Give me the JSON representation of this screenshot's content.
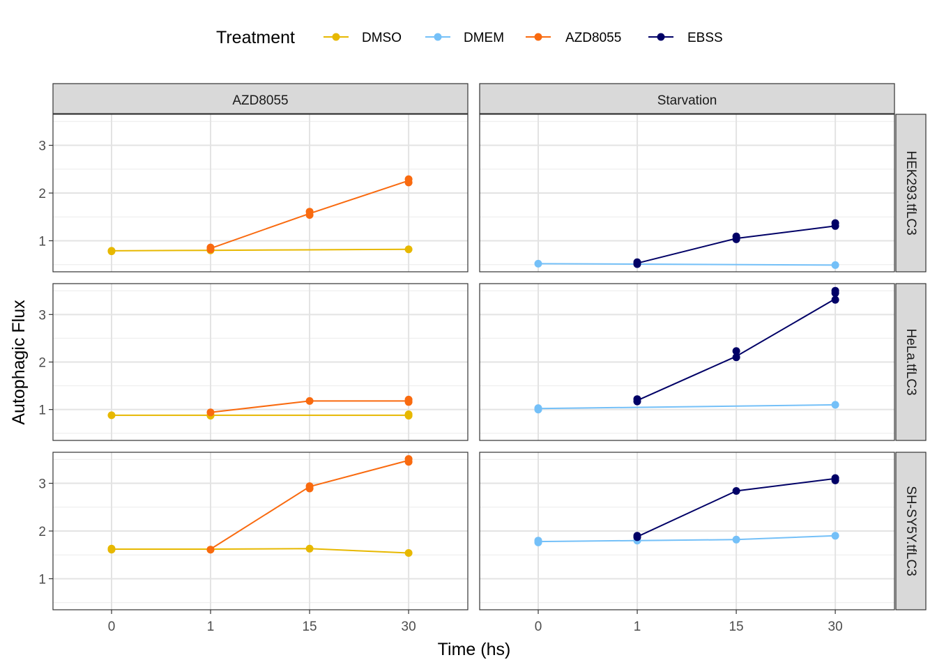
{
  "chart_data": {
    "type": "line",
    "xlabel": "Time (hs)",
    "ylabel": "Autophagic Flux",
    "x_categories": [
      "0",
      "1",
      "15",
      "30"
    ],
    "y_ticks": [
      1,
      2,
      3
    ],
    "ylim": [
      0.35,
      3.65
    ],
    "grid": true,
    "legend": {
      "title": "Treatment",
      "placement": "top",
      "entries": [
        {
          "name": "DMSO",
          "color": "#E7B800"
        },
        {
          "name": "DMEM",
          "color": "#74C0F8"
        },
        {
          "name": "AZD8055",
          "color": "#F96A0F"
        },
        {
          "name": "EBSS",
          "color": "#000066"
        }
      ]
    },
    "columns": [
      "AZD8055",
      "Starvation"
    ],
    "rows": [
      "HEK293.tfLC3",
      "HeLa.tfLC3",
      "SH-SY5Y.tfLC3"
    ],
    "panels": [
      {
        "row": 0,
        "col": 0,
        "series": [
          {
            "name": "DMSO",
            "x": [
              "0",
              "1",
              "15",
              "30"
            ],
            "y": [
              0.79,
              0.8,
              0.81,
              0.82
            ],
            "points": [
              [
                "0",
                0.79
              ],
              [
                "0",
                0.78
              ],
              [
                "1",
                0.8
              ],
              [
                "1",
                0.81
              ],
              [
                "30",
                0.82
              ]
            ]
          },
          {
            "name": "AZD8055",
            "x": [
              "1",
              "15",
              "30"
            ],
            "y": [
              0.84,
              1.57,
              2.26
            ],
            "points": [
              [
                "1",
                0.82
              ],
              [
                "1",
                0.86
              ],
              [
                "15",
                1.54
              ],
              [
                "15",
                1.61
              ],
              [
                "30",
                2.22
              ],
              [
                "30",
                2.29
              ]
            ]
          }
        ]
      },
      {
        "row": 0,
        "col": 1,
        "series": [
          {
            "name": "DMEM",
            "x": [
              "0",
              "1",
              "30"
            ],
            "y": [
              0.52,
              0.51,
              0.49
            ],
            "points": [
              [
                "0",
                0.52
              ],
              [
                "1",
                0.51
              ],
              [
                "30",
                0.49
              ]
            ]
          },
          {
            "name": "EBSS",
            "x": [
              "1",
              "15",
              "30"
            ],
            "y": [
              0.53,
              1.05,
              1.31
            ],
            "points": [
              [
                "1",
                0.51
              ],
              [
                "1",
                0.55
              ],
              [
                "15",
                1.03
              ],
              [
                "15",
                1.09
              ],
              [
                "30",
                1.31
              ],
              [
                "30",
                1.37
              ]
            ]
          }
        ]
      },
      {
        "row": 1,
        "col": 0,
        "series": [
          {
            "name": "DMSO",
            "x": [
              "0",
              "1",
              "30"
            ],
            "y": [
              0.88,
              0.88,
              0.88
            ],
            "points": [
              [
                "0",
                0.88
              ],
              [
                "1",
                0.88
              ],
              [
                "1",
                0.87
              ],
              [
                "30",
                0.87
              ],
              [
                "30",
                0.9
              ]
            ]
          },
          {
            "name": "AZD8055",
            "x": [
              "1",
              "15",
              "30"
            ],
            "y": [
              0.94,
              1.18,
              1.18
            ],
            "points": [
              [
                "1",
                0.94
              ],
              [
                "15",
                1.18
              ],
              [
                "30",
                1.16
              ],
              [
                "30",
                1.21
              ]
            ]
          }
        ]
      },
      {
        "row": 1,
        "col": 1,
        "series": [
          {
            "name": "DMEM",
            "x": [
              "0",
              "30"
            ],
            "y": [
              1.02,
              1.1
            ],
            "points": [
              [
                "0",
                1.0
              ],
              [
                "0",
                1.03
              ],
              [
                "30",
                1.1
              ]
            ]
          },
          {
            "name": "EBSS",
            "x": [
              "1",
              "15",
              "30"
            ],
            "y": [
              1.19,
              2.12,
              3.33
            ],
            "points": [
              [
                "1",
                1.17
              ],
              [
                "1",
                1.22
              ],
              [
                "15",
                2.1
              ],
              [
                "15",
                2.23
              ],
              [
                "30",
                3.31
              ],
              [
                "30",
                3.45
              ],
              [
                "30",
                3.5
              ]
            ]
          }
        ]
      },
      {
        "row": 2,
        "col": 0,
        "series": [
          {
            "name": "DMSO",
            "x": [
              "0",
              "1",
              "15",
              "30"
            ],
            "y": [
              1.62,
              1.62,
              1.63,
              1.54
            ],
            "points": [
              [
                "0",
                1.61
              ],
              [
                "0",
                1.63
              ],
              [
                "1",
                1.61
              ],
              [
                "15",
                1.63
              ],
              [
                "30",
                1.54
              ]
            ]
          },
          {
            "name": "AZD8055",
            "x": [
              "1",
              "15",
              "30"
            ],
            "y": [
              1.62,
              2.93,
              3.48
            ],
            "points": [
              [
                "1",
                1.61
              ],
              [
                "15",
                2.89
              ],
              [
                "15",
                2.94
              ],
              [
                "30",
                3.45
              ],
              [
                "30",
                3.51
              ]
            ]
          }
        ]
      },
      {
        "row": 2,
        "col": 1,
        "series": [
          {
            "name": "DMEM",
            "x": [
              "0",
              "1",
              "15",
              "30"
            ],
            "y": [
              1.78,
              1.8,
              1.82,
              1.9
            ],
            "points": [
              [
                "0",
                1.76
              ],
              [
                "0",
                1.8
              ],
              [
                "1",
                1.8
              ],
              [
                "15",
                1.82
              ],
              [
                "30",
                1.9
              ]
            ]
          },
          {
            "name": "EBSS",
            "x": [
              "1",
              "15",
              "30"
            ],
            "y": [
              1.88,
              2.84,
              3.1
            ],
            "points": [
              [
                "1",
                1.87
              ],
              [
                "1",
                1.9
              ],
              [
                "15",
                2.84
              ],
              [
                "30",
                3.06
              ],
              [
                "30",
                3.11
              ]
            ]
          }
        ]
      }
    ]
  }
}
